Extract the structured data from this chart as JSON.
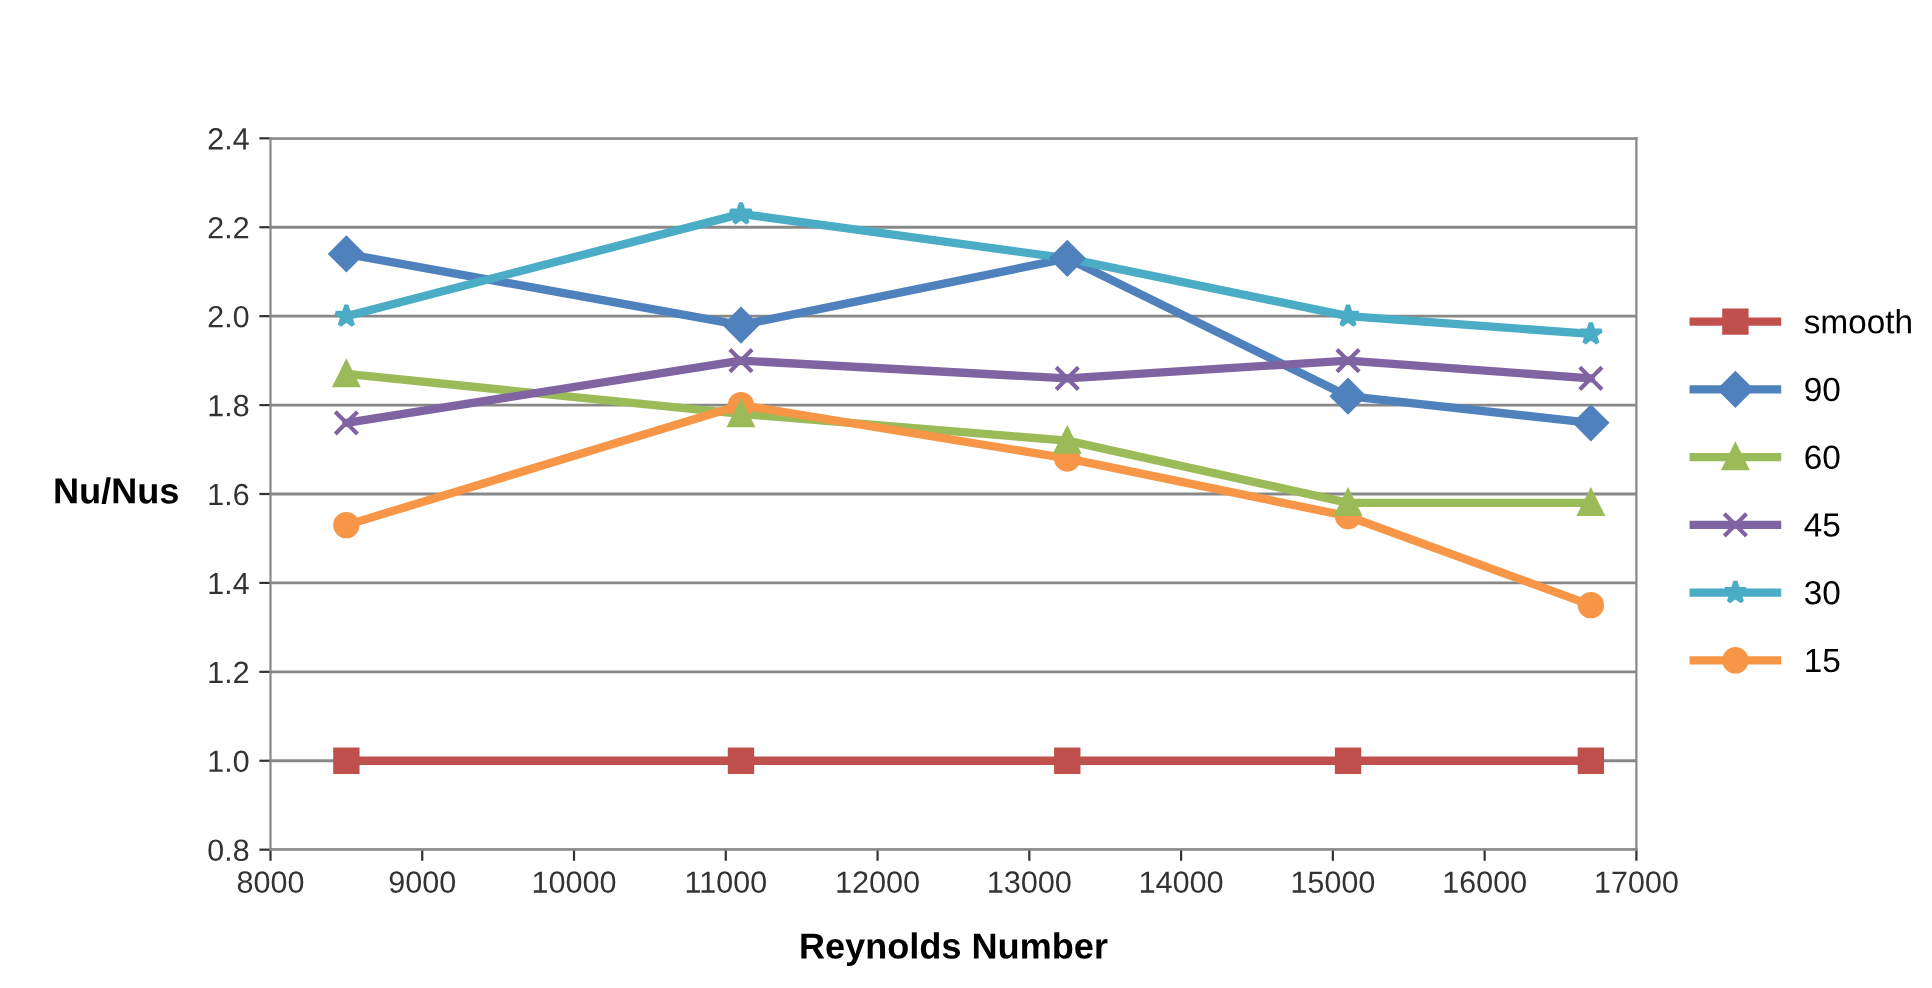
{
  "chart_data": {
    "type": "line",
    "xlabel": "Reynolds Number",
    "ylabel": "Nu/Nus",
    "x": [
      8500,
      11100,
      13250,
      15100,
      16700
    ],
    "series": [
      {
        "name": "smooth",
        "color": "#c0504d",
        "marker": "square",
        "values": [
          1.0,
          1.0,
          1.0,
          1.0,
          1.0
        ]
      },
      {
        "name": "90",
        "color": "#4f81bd",
        "marker": "diamond",
        "values": [
          2.14,
          1.98,
          2.13,
          1.82,
          1.76
        ]
      },
      {
        "name": "60",
        "color": "#9bbb59",
        "marker": "triangle",
        "values": [
          1.87,
          1.78,
          1.72,
          1.58,
          1.58
        ]
      },
      {
        "name": "45",
        "color": "#8064a2",
        "marker": "cross",
        "values": [
          1.76,
          1.9,
          1.86,
          1.9,
          1.86
        ]
      },
      {
        "name": "30",
        "color": "#4bacc6",
        "marker": "star",
        "values": [
          2.0,
          2.23,
          2.13,
          2.0,
          1.96
        ]
      },
      {
        "name": "15",
        "color": "#f79646",
        "marker": "circle",
        "values": [
          1.53,
          1.8,
          1.68,
          1.55,
          1.35
        ]
      }
    ],
    "xlim": [
      8000,
      17000
    ],
    "xticks": [
      8000,
      9000,
      10000,
      11000,
      12000,
      13000,
      14000,
      15000,
      16000,
      17000
    ],
    "ylim": [
      0.8,
      2.4
    ],
    "yticks": [
      {
        "value": 0.8,
        "label": "0.8"
      },
      {
        "value": 1.0,
        "label": "1.0"
      },
      {
        "value": 1.2,
        "label": "1.2"
      },
      {
        "value": 1.4,
        "label": "1.4"
      },
      {
        "value": 1.6,
        "label": "1.6"
      },
      {
        "value": 1.8,
        "label": "1.8"
      },
      {
        "value": 2.0,
        "label": "2.0"
      },
      {
        "value": 2.2,
        "label": "2.2"
      },
      {
        "value": 2.4,
        "label": "2.4"
      }
    ],
    "grid": "y",
    "legend": "right",
    "line_style": "solid"
  }
}
